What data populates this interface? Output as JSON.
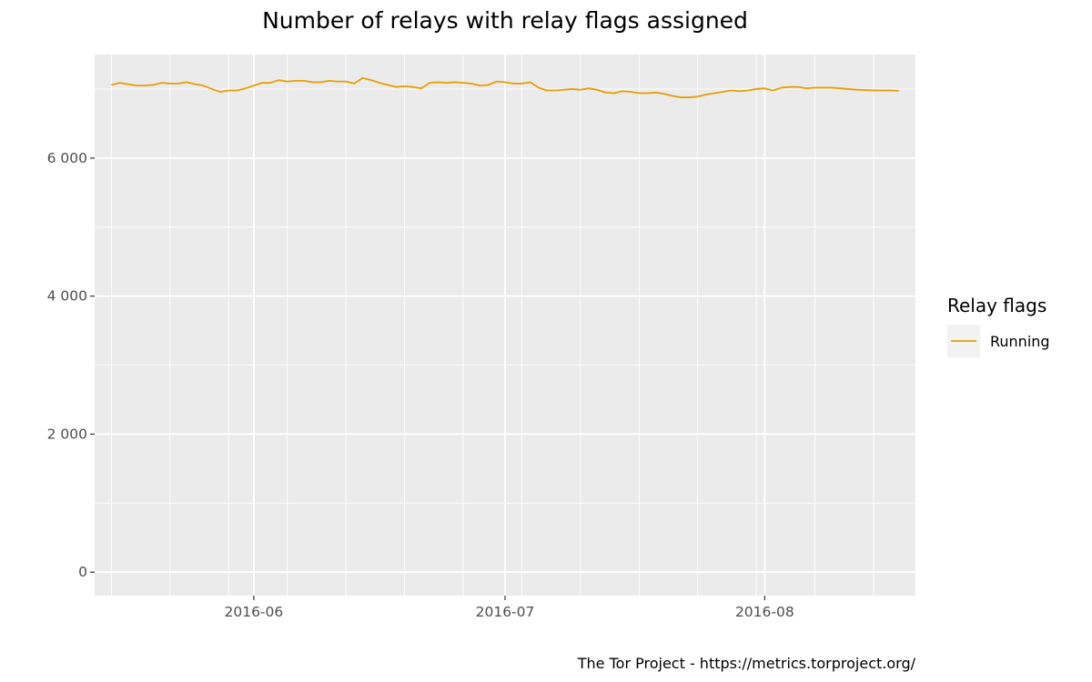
{
  "chart_data": {
    "type": "line",
    "title": "Number of relays with relay flags assigned",
    "xlabel": "",
    "ylabel": "",
    "x_ticks": [
      "2016-06",
      "2016-07",
      "2016-08"
    ],
    "y_ticks": [
      0,
      2000,
      4000,
      6000
    ],
    "y_tick_labels": [
      "0",
      "2 000",
      "4 000",
      "6 000"
    ],
    "xlim": [
      "2016-05-13",
      "2016-08-19"
    ],
    "ylim": [
      -340,
      7500
    ],
    "grid": true,
    "legend_position": "right",
    "legend_title": "Relay flags",
    "caption": "The Tor Project - https://metrics.torproject.org/",
    "colors": {
      "panel": "#ebebeb",
      "grid": "#ffffff",
      "Running": "#e69f00"
    },
    "x": [
      "2016-05-15",
      "2016-05-16",
      "2016-05-17",
      "2016-05-18",
      "2016-05-19",
      "2016-05-20",
      "2016-05-21",
      "2016-05-22",
      "2016-05-23",
      "2016-05-24",
      "2016-05-25",
      "2016-05-26",
      "2016-05-27",
      "2016-05-28",
      "2016-05-29",
      "2016-05-30",
      "2016-05-31",
      "2016-06-01",
      "2016-06-02",
      "2016-06-03",
      "2016-06-04",
      "2016-06-05",
      "2016-06-06",
      "2016-06-07",
      "2016-06-08",
      "2016-06-09",
      "2016-06-10",
      "2016-06-11",
      "2016-06-12",
      "2016-06-13",
      "2016-06-14",
      "2016-06-15",
      "2016-06-16",
      "2016-06-17",
      "2016-06-18",
      "2016-06-19",
      "2016-06-20",
      "2016-06-21",
      "2016-06-22",
      "2016-06-23",
      "2016-06-24",
      "2016-06-25",
      "2016-06-26",
      "2016-06-27",
      "2016-06-28",
      "2016-06-29",
      "2016-06-30",
      "2016-07-01",
      "2016-07-02",
      "2016-07-03",
      "2016-07-04",
      "2016-07-05",
      "2016-07-06",
      "2016-07-07",
      "2016-07-08",
      "2016-07-09",
      "2016-07-10",
      "2016-07-11",
      "2016-07-12",
      "2016-07-13",
      "2016-07-14",
      "2016-07-15",
      "2016-07-16",
      "2016-07-17",
      "2016-07-18",
      "2016-07-19",
      "2016-07-20",
      "2016-07-21",
      "2016-07-22",
      "2016-07-23",
      "2016-07-24",
      "2016-07-25",
      "2016-07-26",
      "2016-07-27",
      "2016-07-28",
      "2016-07-29",
      "2016-07-30",
      "2016-07-31",
      "2016-08-01",
      "2016-08-02",
      "2016-08-03",
      "2016-08-04",
      "2016-08-05",
      "2016-08-06",
      "2016-08-07",
      "2016-08-08",
      "2016-08-09",
      "2016-08-10",
      "2016-08-11",
      "2016-08-12",
      "2016-08-13",
      "2016-08-14",
      "2016-08-15",
      "2016-08-16",
      "2016-08-17"
    ],
    "series": [
      {
        "name": "Running",
        "values": [
          7060,
          7090,
          7070,
          7050,
          7050,
          7060,
          7090,
          7080,
          7080,
          7100,
          7070,
          7050,
          7000,
          6960,
          6980,
          6980,
          7010,
          7050,
          7090,
          7090,
          7130,
          7110,
          7120,
          7120,
          7100,
          7100,
          7120,
          7110,
          7110,
          7080,
          7160,
          7130,
          7090,
          7060,
          7030,
          7040,
          7030,
          7010,
          7090,
          7100,
          7090,
          7100,
          7090,
          7080,
          7050,
          7060,
          7110,
          7100,
          7080,
          7080,
          7100,
          7020,
          6980,
          6980,
          6990,
          7000,
          6990,
          7010,
          6990,
          6950,
          6940,
          6970,
          6960,
          6940,
          6940,
          6950,
          6930,
          6900,
          6880,
          6880,
          6890,
          6920,
          6940,
          6960,
          6980,
          6970,
          6980,
          7000,
          7010,
          6980,
          7020,
          7030,
          7030,
          7010,
          7020,
          7020,
          7020,
          7010,
          7000,
          6990,
          6985,
          6980,
          6980,
          6980,
          6975
        ]
      }
    ]
  }
}
